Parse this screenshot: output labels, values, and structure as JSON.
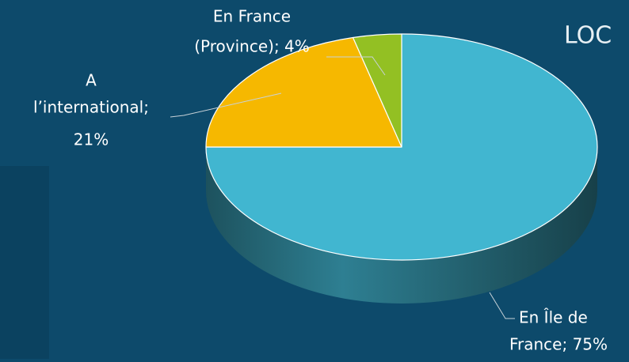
{
  "chart_data": {
    "type": "pie3d",
    "title": "LOC",
    "values": [
      75,
      21,
      4
    ],
    "value_labels": [
      [
        "En Île de",
        "France; 75%"
      ],
      [
        "A",
        "l’international;",
        "21%"
      ],
      [
        "En France",
        "(Province); 4%"
      ]
    ],
    "colors": [
      "#41b6d0",
      "#f6b800",
      "#93c023"
    ]
  }
}
